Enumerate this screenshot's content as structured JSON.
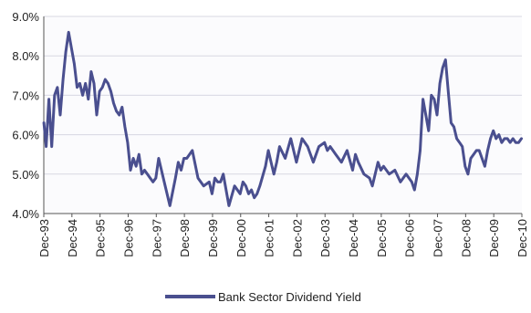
{
  "chart_data": {
    "type": "line",
    "title": "",
    "xlabel": "",
    "ylabel": "",
    "ylim": [
      4.0,
      9.0
    ],
    "yticks": [
      "4.0%",
      "5.0%",
      "6.0%",
      "7.0%",
      "8.0%",
      "9.0%"
    ],
    "ytick_values": [
      4.0,
      5.0,
      6.0,
      7.0,
      8.0,
      9.0
    ],
    "xticks": [
      "Dec-93",
      "Dec-94",
      "Dec-95",
      "Dec-96",
      "Dec-97",
      "Dec-98",
      "Dec-99",
      "Dec-00",
      "Dec-01",
      "Dec-02",
      "Dec-03",
      "Dec-04",
      "Dec-05",
      "Dec-06",
      "Dec-07",
      "Dec-08",
      "Dec-09",
      "Dec-10"
    ],
    "xtick_values": [
      1993.917,
      1994.917,
      1995.917,
      1996.917,
      1997.917,
      1998.917,
      1999.917,
      2000.917,
      2001.917,
      2002.917,
      2003.917,
      2004.917,
      2005.917,
      2006.917,
      2007.917,
      2008.917,
      2009.917,
      2010.917
    ],
    "xlim": [
      1993.917,
      2010.917
    ],
    "grid": true,
    "legend_position": "bottom",
    "series": [
      {
        "name": "Bank Sector Dividend Yield",
        "color": "#4a4f8f",
        "x": [
          1993.92,
          1994.0,
          1994.1,
          1994.2,
          1994.3,
          1994.4,
          1994.5,
          1994.6,
          1994.7,
          1994.8,
          1994.9,
          1995.0,
          1995.1,
          1995.2,
          1995.3,
          1995.4,
          1995.5,
          1995.6,
          1995.7,
          1995.8,
          1995.9,
          1996.0,
          1996.1,
          1996.2,
          1996.3,
          1996.4,
          1996.5,
          1996.6,
          1996.7,
          1996.8,
          1996.9,
          1997.0,
          1997.1,
          1997.2,
          1997.3,
          1997.4,
          1997.5,
          1997.6,
          1997.7,
          1997.8,
          1997.9,
          1998.0,
          1998.2,
          1998.4,
          1998.6,
          1998.7,
          1998.8,
          1998.9,
          1999.0,
          1999.2,
          1999.4,
          1999.6,
          1999.8,
          1999.9,
          2000.0,
          2000.1,
          2000.2,
          2000.3,
          2000.5,
          2000.7,
          2000.9,
          2001.0,
          2001.1,
          2001.2,
          2001.3,
          2001.4,
          2001.5,
          2001.6,
          2001.8,
          2001.9,
          2002.0,
          2002.1,
          2002.2,
          2002.3,
          2002.5,
          2002.7,
          2002.9,
          2003.1,
          2003.3,
          2003.5,
          2003.7,
          2003.9,
          2004.0,
          2004.1,
          2004.3,
          2004.5,
          2004.7,
          2004.9,
          2005.0,
          2005.1,
          2005.3,
          2005.5,
          2005.6,
          2005.8,
          2005.9,
          2006.0,
          2006.2,
          2006.4,
          2006.6,
          2006.8,
          2007.0,
          2007.1,
          2007.2,
          2007.3,
          2007.4,
          2007.5,
          2007.6,
          2007.7,
          2007.8,
          2007.9,
          2008.0,
          2008.1,
          2008.2,
          2008.3,
          2008.4,
          2008.5,
          2008.6,
          2008.7,
          2008.8,
          2008.9,
          2009.0,
          2009.1,
          2009.2,
          2009.3,
          2009.4,
          2009.5,
          2009.6,
          2009.7,
          2009.8,
          2009.9,
          2010.0,
          2010.1,
          2010.2,
          2010.3,
          2010.4,
          2010.5,
          2010.6,
          2010.7,
          2010.8,
          2010.9
        ],
        "values": [
          6.3,
          5.7,
          6.9,
          5.7,
          7.0,
          7.2,
          6.5,
          7.4,
          8.1,
          8.6,
          8.2,
          7.8,
          7.2,
          7.3,
          7.0,
          7.3,
          6.9,
          7.6,
          7.3,
          6.5,
          7.1,
          7.2,
          7.4,
          7.3,
          7.1,
          6.8,
          6.6,
          6.5,
          6.7,
          6.2,
          5.8,
          5.1,
          5.4,
          5.2,
          5.5,
          5.0,
          5.1,
          5.0,
          4.9,
          4.8,
          4.9,
          5.4,
          4.8,
          4.2,
          4.9,
          5.3,
          5.1,
          5.4,
          5.4,
          5.6,
          4.9,
          4.7,
          4.8,
          4.5,
          4.9,
          4.8,
          4.8,
          5.0,
          4.2,
          4.7,
          4.5,
          4.8,
          4.7,
          4.5,
          4.6,
          4.4,
          4.5,
          4.7,
          5.2,
          5.6,
          5.3,
          5.0,
          5.3,
          5.7,
          5.4,
          5.9,
          5.3,
          5.9,
          5.7,
          5.3,
          5.7,
          5.8,
          5.6,
          5.7,
          5.5,
          5.3,
          5.6,
          5.1,
          5.5,
          5.3,
          5.0,
          4.9,
          4.7,
          5.3,
          5.1,
          5.2,
          5.0,
          5.1,
          4.8,
          5.0,
          4.8,
          4.6,
          5.0,
          5.6,
          6.9,
          6.5,
          6.1,
          7.0,
          6.9,
          6.5,
          7.3,
          7.7,
          7.9,
          7.1,
          6.3,
          6.2,
          5.9,
          5.8,
          5.7,
          5.2,
          5.0,
          5.4,
          5.5,
          5.6,
          5.6,
          5.4,
          5.2,
          5.6,
          5.9,
          6.1,
          5.9,
          6.0,
          5.8,
          5.9,
          5.9,
          5.8,
          5.9,
          5.8,
          5.8,
          5.9
        ]
      }
    ]
  }
}
